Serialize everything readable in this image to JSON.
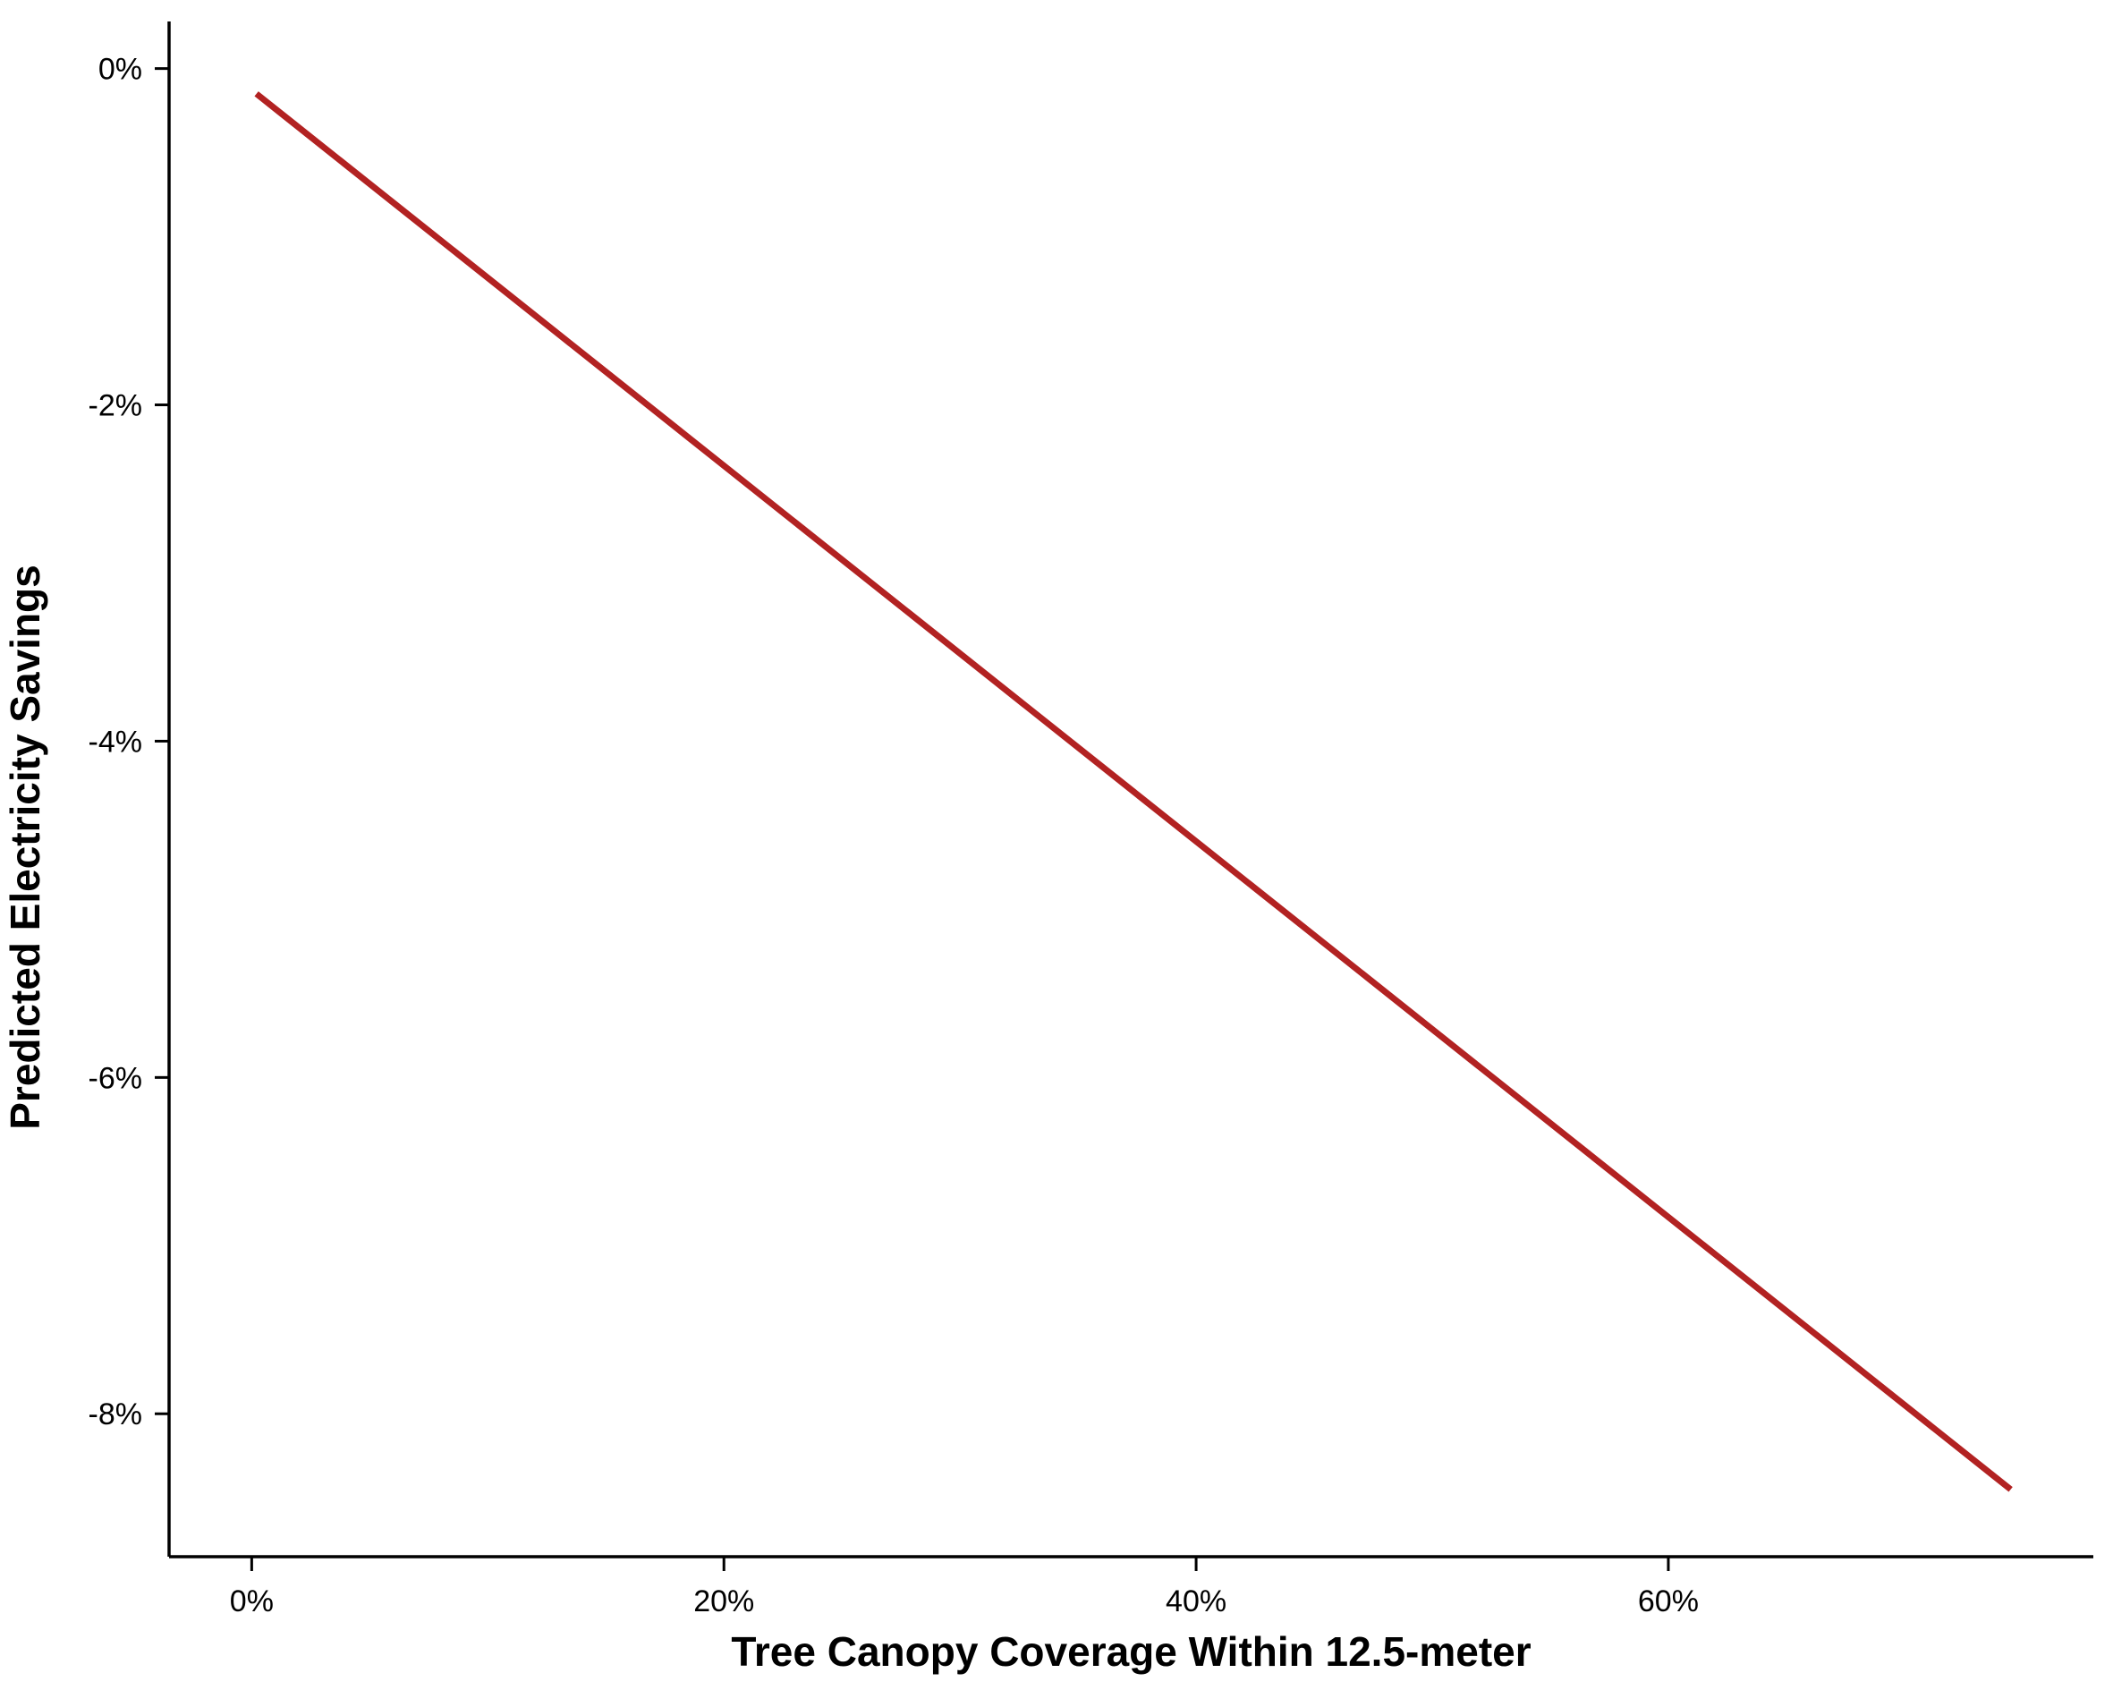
{
  "chart_data": {
    "type": "line",
    "title": "",
    "xlabel": "Tree Canopy Coverage Within 12.5-meter",
    "ylabel": "Predicted Electricity Savings",
    "xlim": [
      -3.5,
      78
    ],
    "ylim": [
      -8.85,
      0.28
    ],
    "x_ticks": [
      0,
      20,
      40,
      60
    ],
    "x_tick_labels": [
      "0%",
      "20%",
      "40%",
      "60%"
    ],
    "y_ticks": [
      0,
      -2,
      -4,
      -6,
      -8
    ],
    "y_tick_labels": [
      "0%",
      "-2%",
      "-4%",
      "-6%",
      "-8%"
    ],
    "grid": false,
    "legend": "none",
    "series": [
      {
        "color": "#B22222",
        "x": [
          0.2,
          74.5
        ],
        "y": [
          -0.15,
          -8.45
        ]
      }
    ]
  }
}
